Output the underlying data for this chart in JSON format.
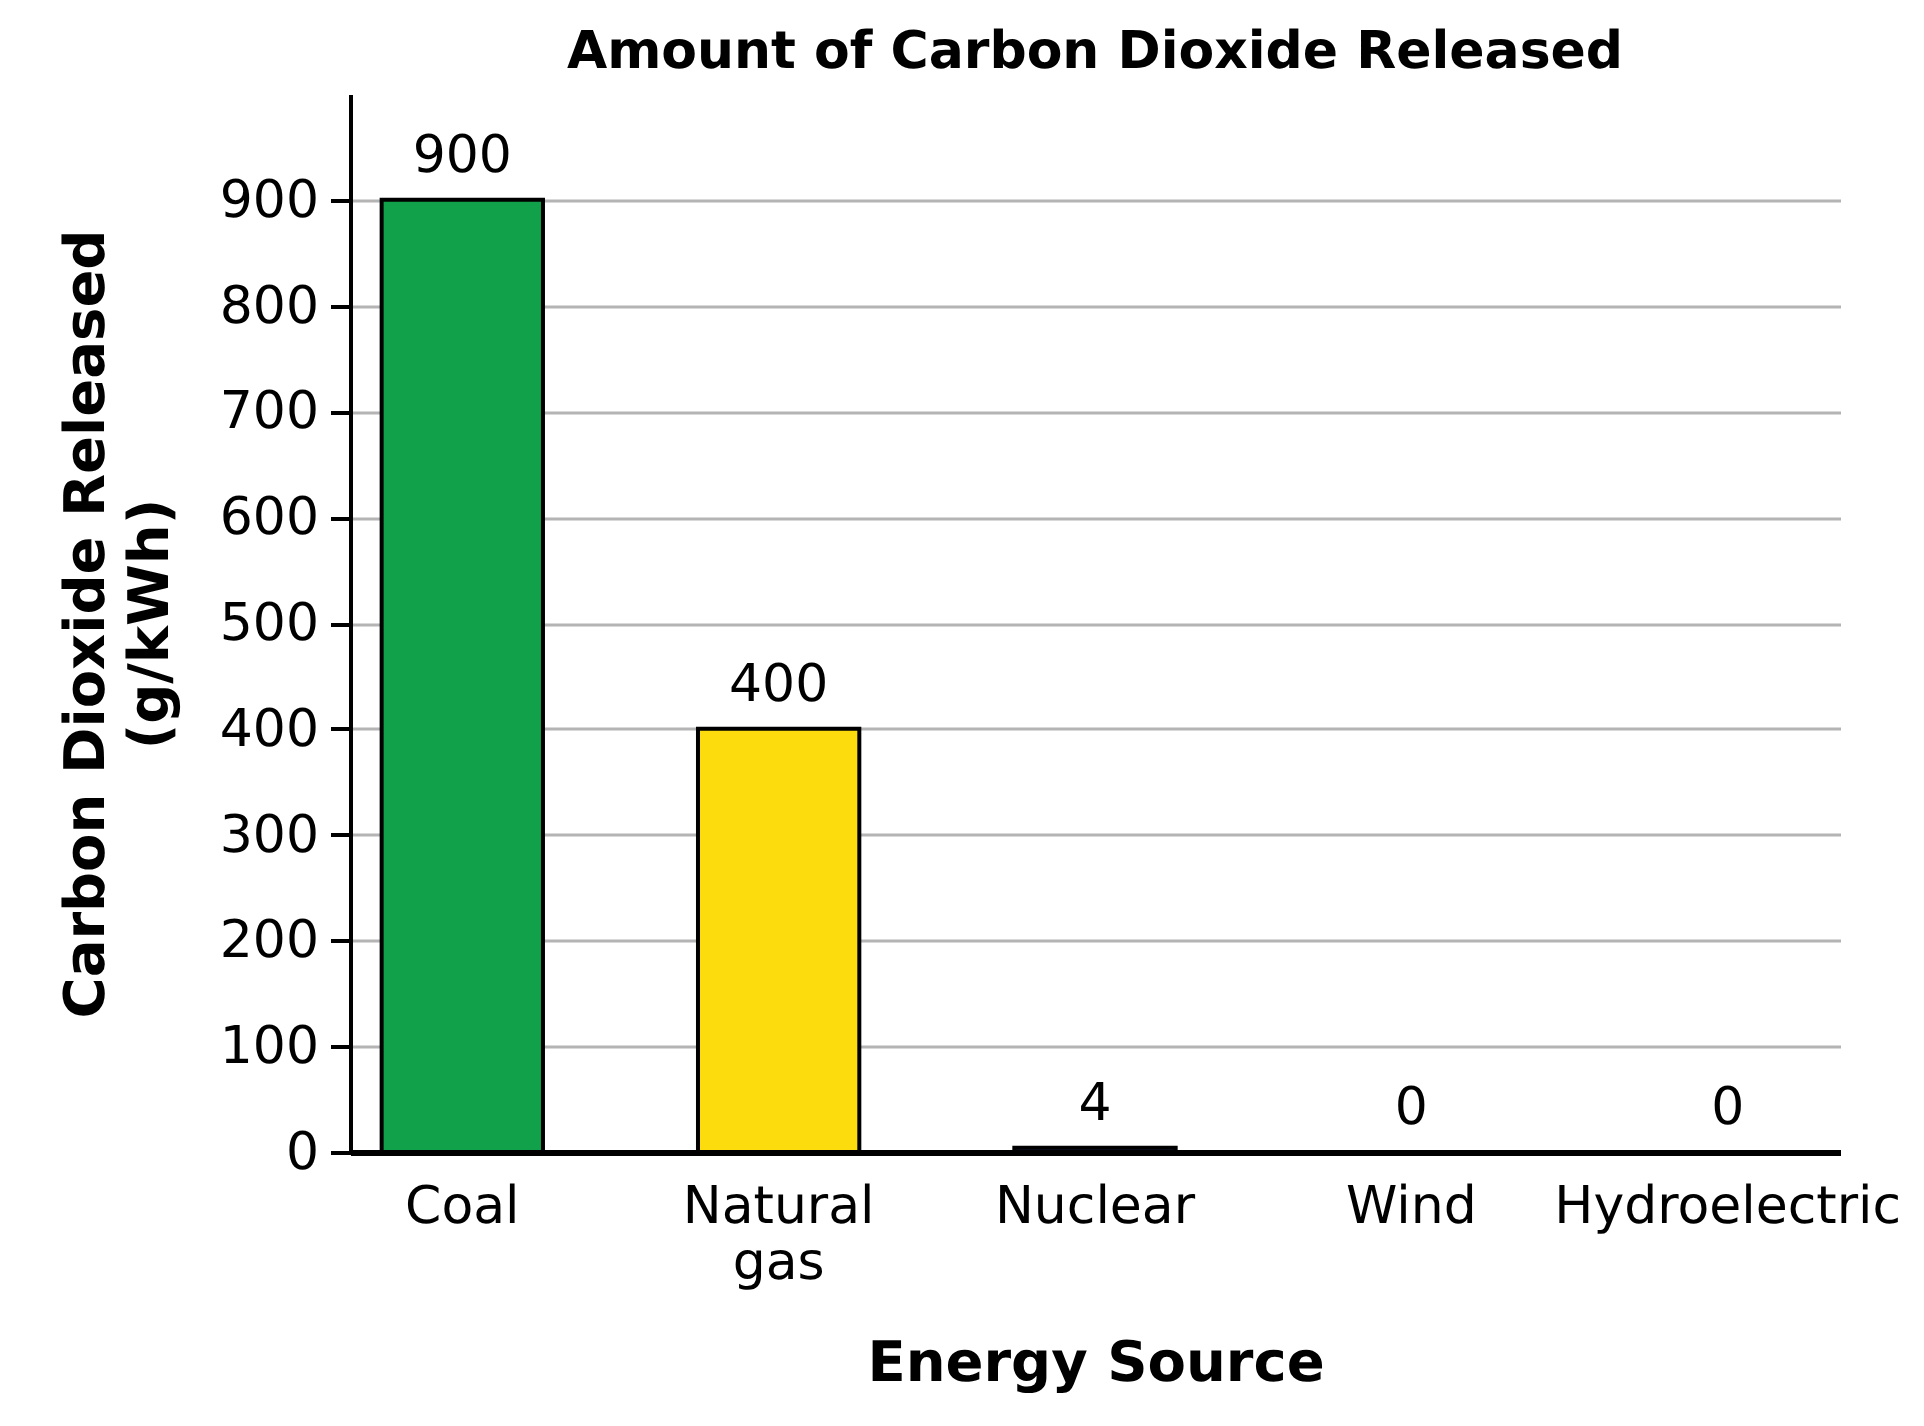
{
  "chart_data": {
    "type": "bar",
    "title": "Amount of Carbon Dioxide Released",
    "xlabel": "Energy Source",
    "ylabel": "Carbon Dioxide Released (g/kWh)",
    "categories": [
      "Coal",
      "Natural gas",
      "Nuclear",
      "Wind",
      "Hydroelectric"
    ],
    "values": [
      900,
      400,
      4,
      0,
      0
    ],
    "colors": [
      "#10a14a",
      "#fcdc0c",
      "#1c2b5c",
      null,
      null
    ],
    "ylim": [
      0,
      1000
    ],
    "yticks": [
      0,
      100,
      200,
      300,
      400,
      500,
      600,
      700,
      800,
      900
    ],
    "grid": "y",
    "data_labels": true
  }
}
